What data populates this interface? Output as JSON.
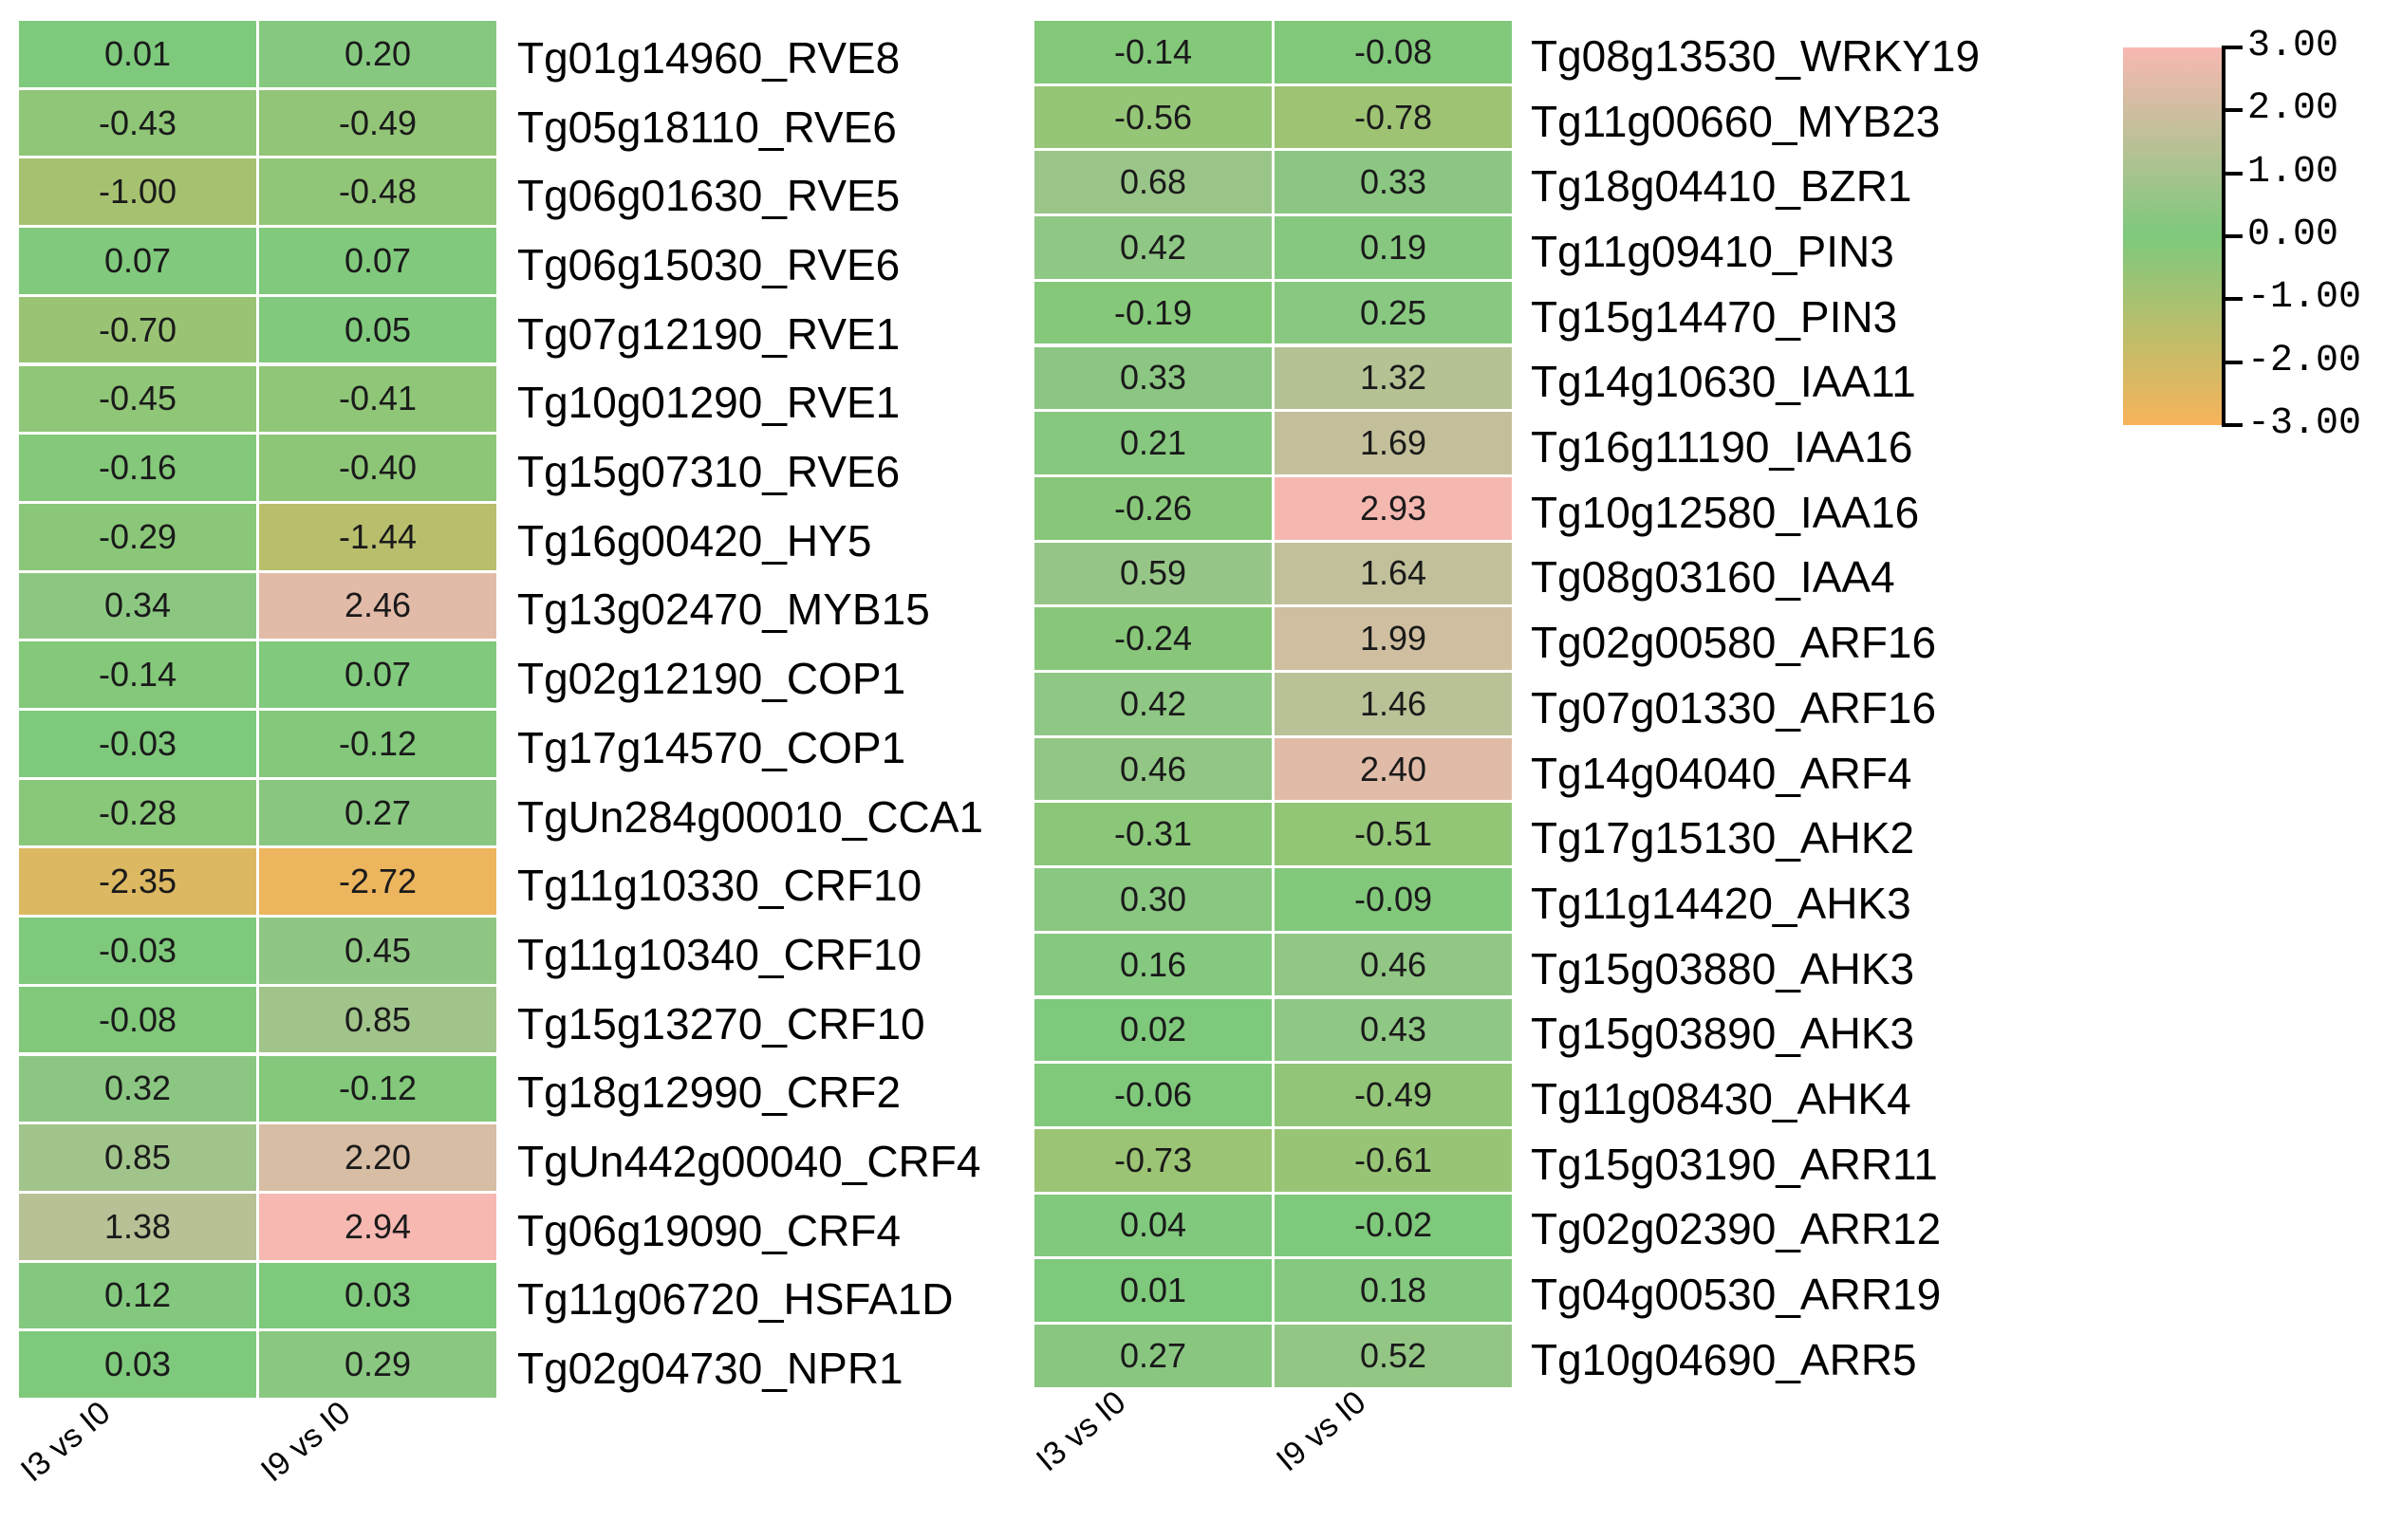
{
  "chart_data": [
    {
      "type": "heatmap",
      "columns": [
        "I3 vs I0",
        "I9 vs I0"
      ],
      "rows": [
        {
          "gene": "Tg01g14960_RVE8",
          "values": [
            0.01,
            0.2
          ]
        },
        {
          "gene": "Tg05g18110_RVE6",
          "values": [
            -0.43,
            -0.49
          ]
        },
        {
          "gene": "Tg06g01630_RVE5",
          "values": [
            -1.0,
            -0.48
          ]
        },
        {
          "gene": "Tg06g15030_RVE6",
          "values": [
            0.07,
            0.07
          ]
        },
        {
          "gene": "Tg07g12190_RVE1",
          "values": [
            -0.7,
            0.05
          ]
        },
        {
          "gene": "Tg10g01290_RVE1",
          "values": [
            -0.45,
            -0.41
          ]
        },
        {
          "gene": "Tg15g07310_RVE6",
          "values": [
            -0.16,
            -0.4
          ]
        },
        {
          "gene": "Tg16g00420_HY5",
          "values": [
            -0.29,
            -1.44
          ]
        },
        {
          "gene": "Tg13g02470_MYB15",
          "values": [
            0.34,
            2.46
          ]
        },
        {
          "gene": "Tg02g12190_COP1",
          "values": [
            -0.14,
            0.07
          ]
        },
        {
          "gene": "Tg17g14570_COP1",
          "values": [
            -0.03,
            -0.12
          ]
        },
        {
          "gene": "TgUn284g00010_CCA1",
          "values": [
            -0.28,
            0.27
          ]
        },
        {
          "gene": "Tg11g10330_CRF10",
          "values": [
            -2.35,
            -2.72
          ]
        },
        {
          "gene": "Tg11g10340_CRF10",
          "values": [
            -0.03,
            0.45
          ]
        },
        {
          "gene": "Tg15g13270_CRF10",
          "values": [
            -0.08,
            0.85
          ]
        },
        {
          "gene": "Tg18g12990_CRF2",
          "values": [
            0.32,
            -0.12
          ]
        },
        {
          "gene": "TgUn442g00040_CRF4",
          "values": [
            0.85,
            2.2
          ]
        },
        {
          "gene": "Tg06g19090_CRF4",
          "values": [
            1.38,
            2.94
          ]
        },
        {
          "gene": "Tg11g06720_HSFA1D",
          "values": [
            0.12,
            0.03
          ]
        },
        {
          "gene": "Tg02g04730_NPR1",
          "values": [
            0.03,
            0.29
          ]
        }
      ]
    },
    {
      "type": "heatmap",
      "columns": [
        "I3 vs I0",
        "I9 vs I0"
      ],
      "rows": [
        {
          "gene": "Tg08g13530_WRKY19",
          "values": [
            -0.14,
            -0.08
          ]
        },
        {
          "gene": "Tg11g00660_MYB23",
          "values": [
            -0.56,
            -0.78
          ]
        },
        {
          "gene": "Tg18g04410_BZR1",
          "values": [
            0.68,
            0.33
          ]
        },
        {
          "gene": "Tg11g09410_PIN3",
          "values": [
            0.42,
            0.19
          ]
        },
        {
          "gene": "Tg15g14470_PIN3",
          "values": [
            -0.19,
            0.25
          ]
        },
        {
          "gene": "Tg14g10630_IAA11",
          "values": [
            0.33,
            1.32
          ]
        },
        {
          "gene": "Tg16g11190_IAA16",
          "values": [
            0.21,
            1.69
          ]
        },
        {
          "gene": "Tg10g12580_IAA16",
          "values": [
            -0.26,
            2.93
          ]
        },
        {
          "gene": "Tg08g03160_IAA4",
          "values": [
            0.59,
            1.64
          ]
        },
        {
          "gene": "Tg02g00580_ARF16",
          "values": [
            -0.24,
            1.99
          ]
        },
        {
          "gene": "Tg07g01330_ARF16",
          "values": [
            0.42,
            1.46
          ]
        },
        {
          "gene": "Tg14g04040_ARF4",
          "values": [
            0.46,
            2.4
          ]
        },
        {
          "gene": "Tg17g15130_AHK2",
          "values": [
            -0.31,
            -0.51
          ]
        },
        {
          "gene": "Tg11g14420_AHK3",
          "values": [
            0.3,
            -0.09
          ]
        },
        {
          "gene": "Tg15g03880_AHK3",
          "values": [
            0.16,
            0.46
          ]
        },
        {
          "gene": "Tg15g03890_AHK3",
          "values": [
            0.02,
            0.43
          ]
        },
        {
          "gene": "Tg11g08430_AHK4",
          "values": [
            -0.06,
            -0.49
          ]
        },
        {
          "gene": "Tg15g03190_ARR11",
          "values": [
            -0.73,
            -0.61
          ]
        },
        {
          "gene": "Tg02g02390_ARR12",
          "values": [
            0.04,
            -0.02
          ]
        },
        {
          "gene": "Tg04g00530_ARR19",
          "values": [
            0.01,
            0.18
          ]
        },
        {
          "gene": "Tg10g04690_ARR5",
          "values": [
            0.27,
            0.52
          ]
        }
      ]
    }
  ],
  "legend": {
    "range": [
      -3,
      3
    ],
    "colors": {
      "high": "#f8b8b2",
      "mid": "#7ec97c",
      "low": "#f7b35b"
    },
    "ticks": [
      "3.00",
      "2.00",
      "1.00",
      "0.00",
      "-1.00",
      "-2.00",
      "-3.00"
    ]
  }
}
